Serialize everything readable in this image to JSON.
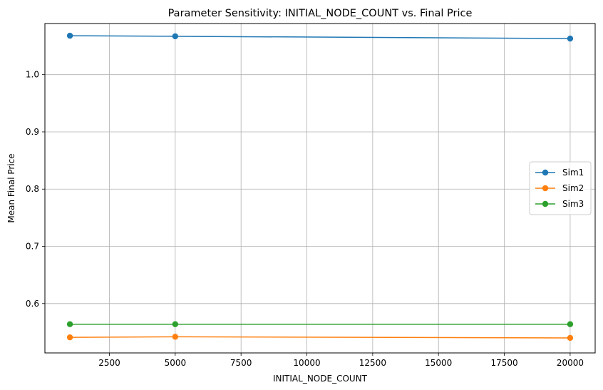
{
  "chart_data": {
    "type": "line",
    "title": "Parameter Sensitivity: INITIAL_NODE_COUNT vs. Final Price",
    "xlabel": "INITIAL_NODE_COUNT",
    "ylabel": "Mean Final Price",
    "x": [
      1000,
      5000,
      20000
    ],
    "xlim": [
      50,
      20950
    ],
    "ylim": [
      0.5138,
      1.0893
    ],
    "xticks": [
      2500,
      5000,
      7500,
      10000,
      12500,
      15000,
      17500,
      20000
    ],
    "yticks": [
      0.6,
      0.7,
      0.8,
      0.9,
      1.0
    ],
    "ytick_labels": [
      "0.6",
      "0.7",
      "0.8",
      "0.9",
      "1.0"
    ],
    "grid": true,
    "legend_position": "center-right",
    "series": [
      {
        "name": "Sim1",
        "color": "#1f77b4",
        "values": [
          1.068,
          1.067,
          1.063
        ]
      },
      {
        "name": "Sim2",
        "color": "#ff7f0e",
        "values": [
          0.541,
          0.542,
          0.54
        ]
      },
      {
        "name": "Sim3",
        "color": "#2ca02c",
        "values": [
          0.564,
          0.564,
          0.564
        ]
      }
    ]
  }
}
